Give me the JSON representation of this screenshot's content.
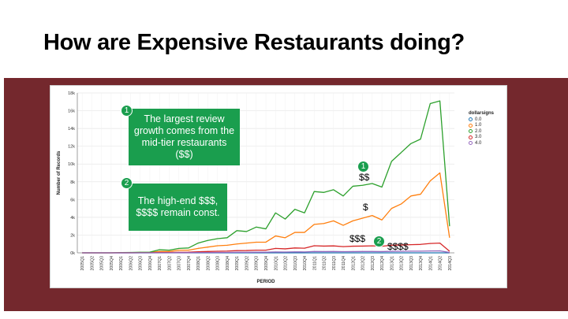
{
  "slide": {
    "title": "How are Expensive Restaurants doing?"
  },
  "annotations": {
    "callout1_number": "1",
    "callout1_text": "The largest review growth comes from the mid-tier restaurants ($$)",
    "callout2_number": "2",
    "callout2_text": "The high-end $$$, $$$$ remain const.",
    "badge1_number": "1",
    "badge2_number": "2",
    "label_mid": "$$",
    "label_low": "$",
    "label_high": "$$$",
    "label_top": "$$$$"
  },
  "chart_data": {
    "type": "line",
    "title": "",
    "xlabel": "PERIOD",
    "ylabel": "Number of Records",
    "ylim": [
      0,
      18000
    ],
    "yticks": [
      0,
      2000,
      4000,
      6000,
      8000,
      10000,
      12000,
      14000,
      16000,
      18000
    ],
    "ytick_labels": [
      "0k",
      "2k",
      "4k",
      "6k",
      "8k",
      "10k",
      "12k",
      "14k",
      "16k",
      "18k"
    ],
    "grid": true,
    "legend_title": "dollarsigns",
    "legend_position": "top-right",
    "x": [
      "2005Q1",
      "2005Q2",
      "2005Q3",
      "2005Q4",
      "2006Q1",
      "2006Q2",
      "2006Q3",
      "2006Q4",
      "2007Q1",
      "2007Q2",
      "2007Q3",
      "2007Q4",
      "2008Q1",
      "2008Q2",
      "2008Q3",
      "2008Q4",
      "2009Q1",
      "2009Q2",
      "2009Q3",
      "2009Q4",
      "2010Q1",
      "2010Q2",
      "2010Q3",
      "2010Q4",
      "2011Q1",
      "2011Q2",
      "2011Q3",
      "2011Q4",
      "2012Q1",
      "2012Q2",
      "2012Q3",
      "2012Q4",
      "2013Q1",
      "2013Q2",
      "2013Q3",
      "2013Q4",
      "2014Q1",
      "2014Q2",
      "2014Q3"
    ],
    "series": [
      {
        "name": "0.0",
        "color": "#1f77b4",
        "values": [
          0,
          0,
          0,
          0,
          0,
          0,
          0,
          0,
          0,
          0,
          0,
          0,
          0,
          0,
          0,
          0,
          0,
          0,
          0,
          0,
          0,
          0,
          0,
          0,
          0,
          0,
          0,
          0,
          0,
          0,
          0,
          0,
          0,
          0,
          0,
          0,
          0,
          0,
          0
        ]
      },
      {
        "name": "1.0",
        "color": "#ff7f0e",
        "values": [
          0,
          0,
          0,
          0,
          20,
          20,
          40,
          50,
          150,
          150,
          300,
          300,
          500,
          650,
          800,
          850,
          1000,
          1100,
          1200,
          1200,
          1900,
          1700,
          2300,
          2300,
          3200,
          3300,
          3600,
          3100,
          3600,
          3900,
          4200,
          3700,
          5000,
          5500,
          6400,
          6600,
          8100,
          9000,
          1700
        ]
      },
      {
        "name": "2.0",
        "color": "#2ca02c",
        "values": [
          0,
          0,
          0,
          0,
          30,
          40,
          60,
          80,
          350,
          300,
          500,
          550,
          1100,
          1400,
          1600,
          1700,
          2500,
          2400,
          2900,
          2700,
          4500,
          3800,
          4900,
          4500,
          6900,
          6800,
          7100,
          6400,
          7500,
          7600,
          7800,
          7400,
          10300,
          11300,
          12300,
          12800,
          16800,
          17100,
          3000
        ]
      },
      {
        "name": "3.0",
        "color": "#d62728",
        "values": [
          0,
          0,
          0,
          0,
          5,
          5,
          10,
          10,
          40,
          40,
          60,
          70,
          120,
          150,
          180,
          200,
          250,
          260,
          300,
          300,
          500,
          450,
          550,
          520,
          800,
          760,
          780,
          700,
          750,
          760,
          790,
          740,
          850,
          880,
          920,
          950,
          1050,
          1100,
          180
        ]
      },
      {
        "name": "4.0",
        "color": "#9467bd",
        "values": [
          0,
          0,
          0,
          0,
          0,
          0,
          0,
          0,
          10,
          10,
          15,
          15,
          30,
          35,
          40,
          45,
          60,
          60,
          70,
          70,
          100,
          90,
          110,
          100,
          150,
          140,
          150,
          130,
          140,
          150,
          150,
          140,
          170,
          180,
          190,
          190,
          210,
          220,
          40
        ]
      }
    ]
  }
}
